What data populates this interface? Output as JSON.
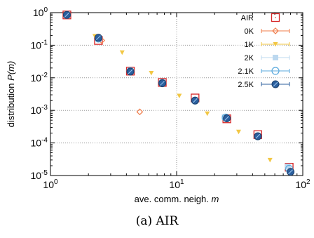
{
  "chart_data": {
    "type": "scatter",
    "title": "",
    "xlabel": "ave. comm. neigh.",
    "xlabel_var": "m",
    "ylabel": "distribution",
    "ylabel_var": "P(m)",
    "xscale": "log",
    "yscale": "log",
    "xlim": [
      1,
      100
    ],
    "ylim": [
      1e-05,
      1
    ],
    "x_ticks": [
      {
        "base": "10",
        "exp": "0"
      },
      {
        "base": "10",
        "exp": "1"
      },
      {
        "base": "10",
        "exp": "2"
      }
    ],
    "y_ticks": [
      {
        "base": "10",
        "exp": "-5"
      },
      {
        "base": "10",
        "exp": "-4"
      },
      {
        "base": "10",
        "exp": "-3"
      },
      {
        "base": "10",
        "exp": "-2"
      },
      {
        "base": "10",
        "exp": "-1"
      },
      {
        "base": "10",
        "exp": "0"
      }
    ],
    "grid": "major, dotted",
    "legend_position": "top-right",
    "series": [
      {
        "name": "AIR",
        "marker": "square",
        "color": "#d62728",
        "points": [
          [
            1.35,
            0.85
          ],
          [
            2.4,
            0.14
          ],
          [
            4.3,
            0.016
          ],
          [
            7.7,
            0.0072
          ],
          [
            14,
            0.0024
          ],
          [
            25,
            0.00055
          ],
          [
            44,
            0.00018
          ],
          [
            78,
            1.8e-05
          ]
        ]
      },
      {
        "name": "0K",
        "marker": "diamond",
        "color": "#f07c4a",
        "points": [
          [
            1.35,
            0.85
          ],
          [
            2.55,
            0.14
          ],
          [
            4.3,
            0.016
          ],
          [
            5.1,
            0.0009
          ],
          [
            7.7,
            0.0072
          ],
          [
            14,
            0.0021
          ],
          [
            25,
            0.00058
          ],
          [
            44,
            0.00016
          ],
          [
            80,
            1.4e-05
          ]
        ]
      },
      {
        "name": "1K",
        "marker": "triangle-down",
        "color": "#f2c744",
        "points": [
          [
            2.25,
            0.19
          ],
          [
            3.7,
            0.06
          ],
          [
            6.3,
            0.014
          ],
          [
            10.5,
            0.0028
          ],
          [
            17.5,
            0.0008
          ],
          [
            31,
            0.00022
          ],
          [
            55,
            3e-05
          ]
        ]
      },
      {
        "name": "2K",
        "marker": "square-filled",
        "color": "#bcd8ef",
        "points": [
          [
            1.35,
            0.85
          ],
          [
            2.4,
            0.16
          ],
          [
            4.3,
            0.016
          ],
          [
            7.7,
            0.007
          ],
          [
            14,
            0.002
          ],
          [
            24,
            0.00062
          ],
          [
            44,
            0.00016
          ],
          [
            76,
            1.9e-05
          ]
        ]
      },
      {
        "name": "2.1K",
        "marker": "circle",
        "color": "#5aa9dd",
        "points": [
          [
            1.35,
            0.85
          ],
          [
            2.4,
            0.16
          ],
          [
            4.3,
            0.016
          ],
          [
            7.7,
            0.007
          ],
          [
            14,
            0.002
          ],
          [
            24.5,
            0.0006
          ],
          [
            44,
            0.00016
          ],
          [
            78,
            1.6e-05
          ]
        ]
      },
      {
        "name": "2.5K",
        "marker": "circle-filled",
        "color": "#2b5f9e",
        "points": [
          [
            1.35,
            0.85
          ],
          [
            2.4,
            0.17
          ],
          [
            4.3,
            0.0155
          ],
          [
            7.7,
            0.0068
          ],
          [
            14,
            0.002
          ],
          [
            25,
            0.00057
          ],
          [
            44,
            0.00016
          ],
          [
            80,
            1.3e-05
          ]
        ]
      }
    ]
  },
  "caption": "(a) AIR"
}
